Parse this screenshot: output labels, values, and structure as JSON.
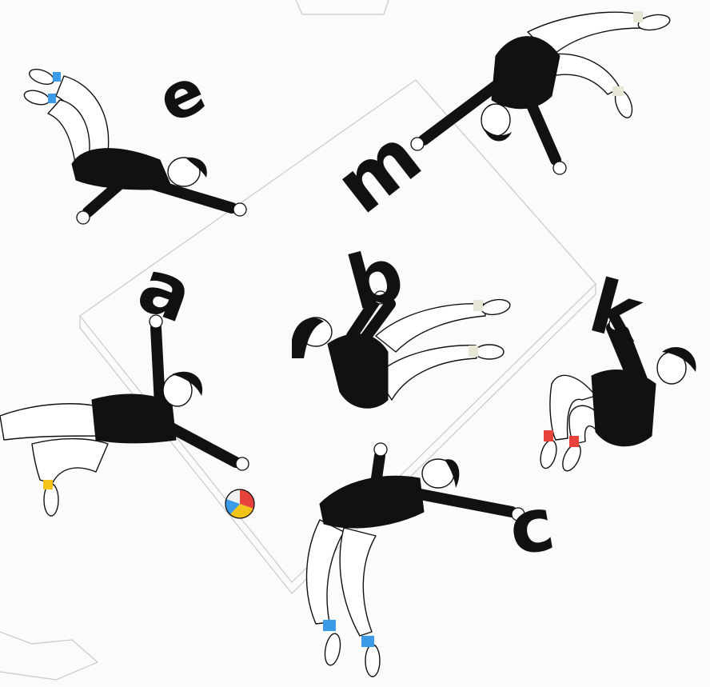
{
  "letters": [
    "e",
    "m",
    "a",
    "b",
    "k",
    "c"
  ],
  "colors": {
    "sock_blue": "#3b9be8",
    "sock_red": "#e8423d",
    "sock_yellow": "#f2c41b",
    "sock_cream": "#e8e6d6",
    "ink": "#111111",
    "ball": [
      "#e8423d",
      "#f2c41b",
      "#3b9be8",
      "#f0f0f0"
    ]
  }
}
